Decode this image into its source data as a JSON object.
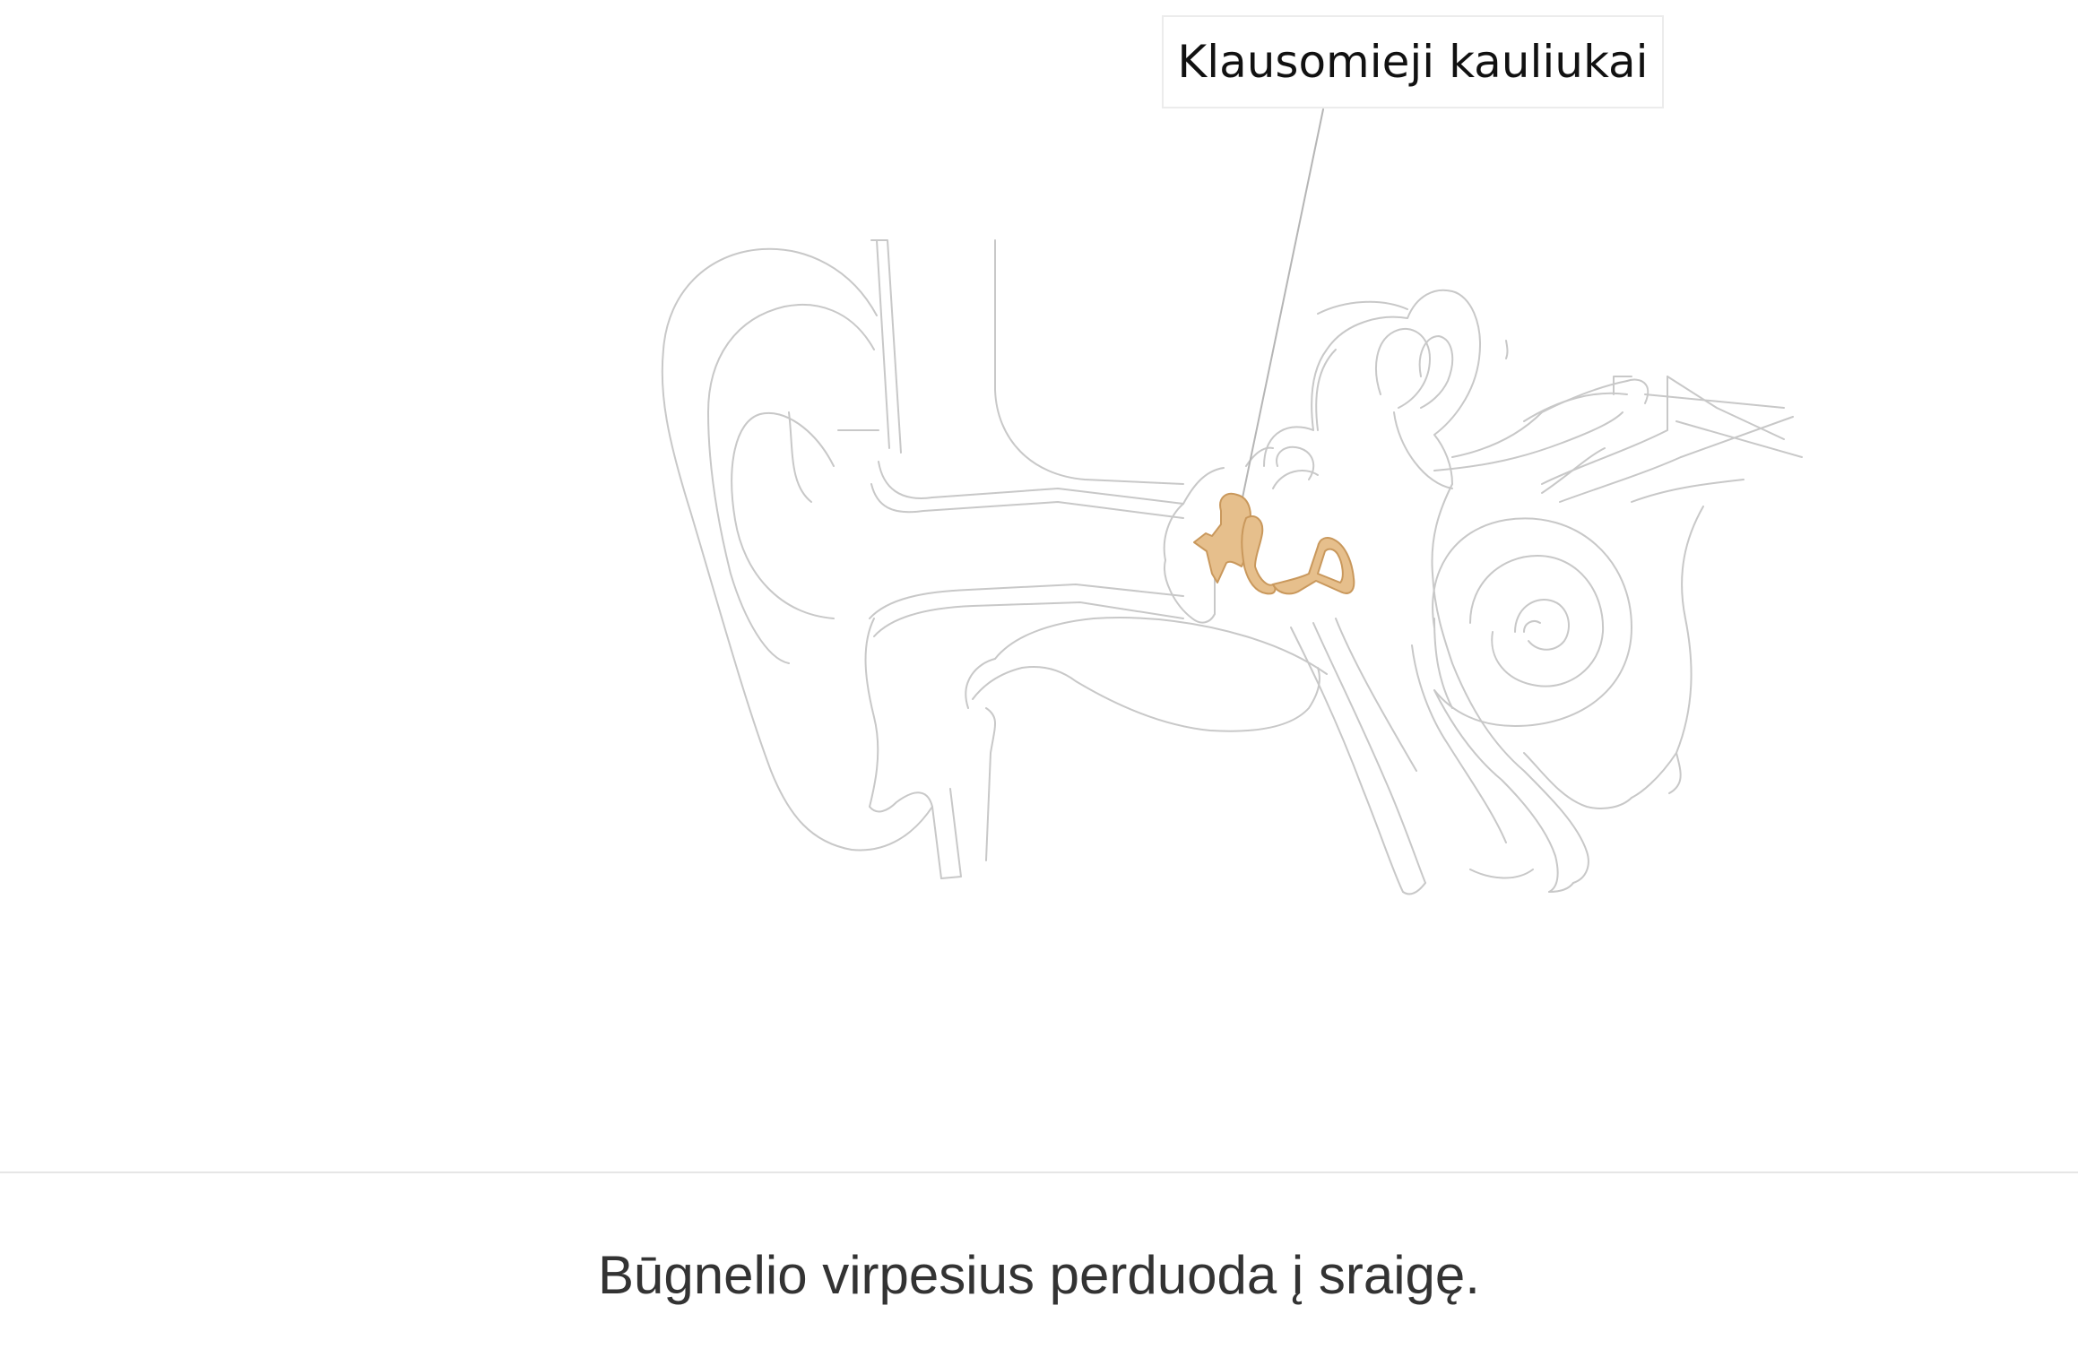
{
  "labels": {
    "ossicles": "Klausomieji kauliukai"
  },
  "caption": "Būgnelio virpesius perduoda į sraigę.",
  "colors": {
    "outline": "#c8c8c8",
    "ossicle_fill": "#e6bf8c",
    "ossicle_stroke": "#c9985c",
    "leader_line": "#b5b5b5",
    "caption_text": "#333333"
  }
}
